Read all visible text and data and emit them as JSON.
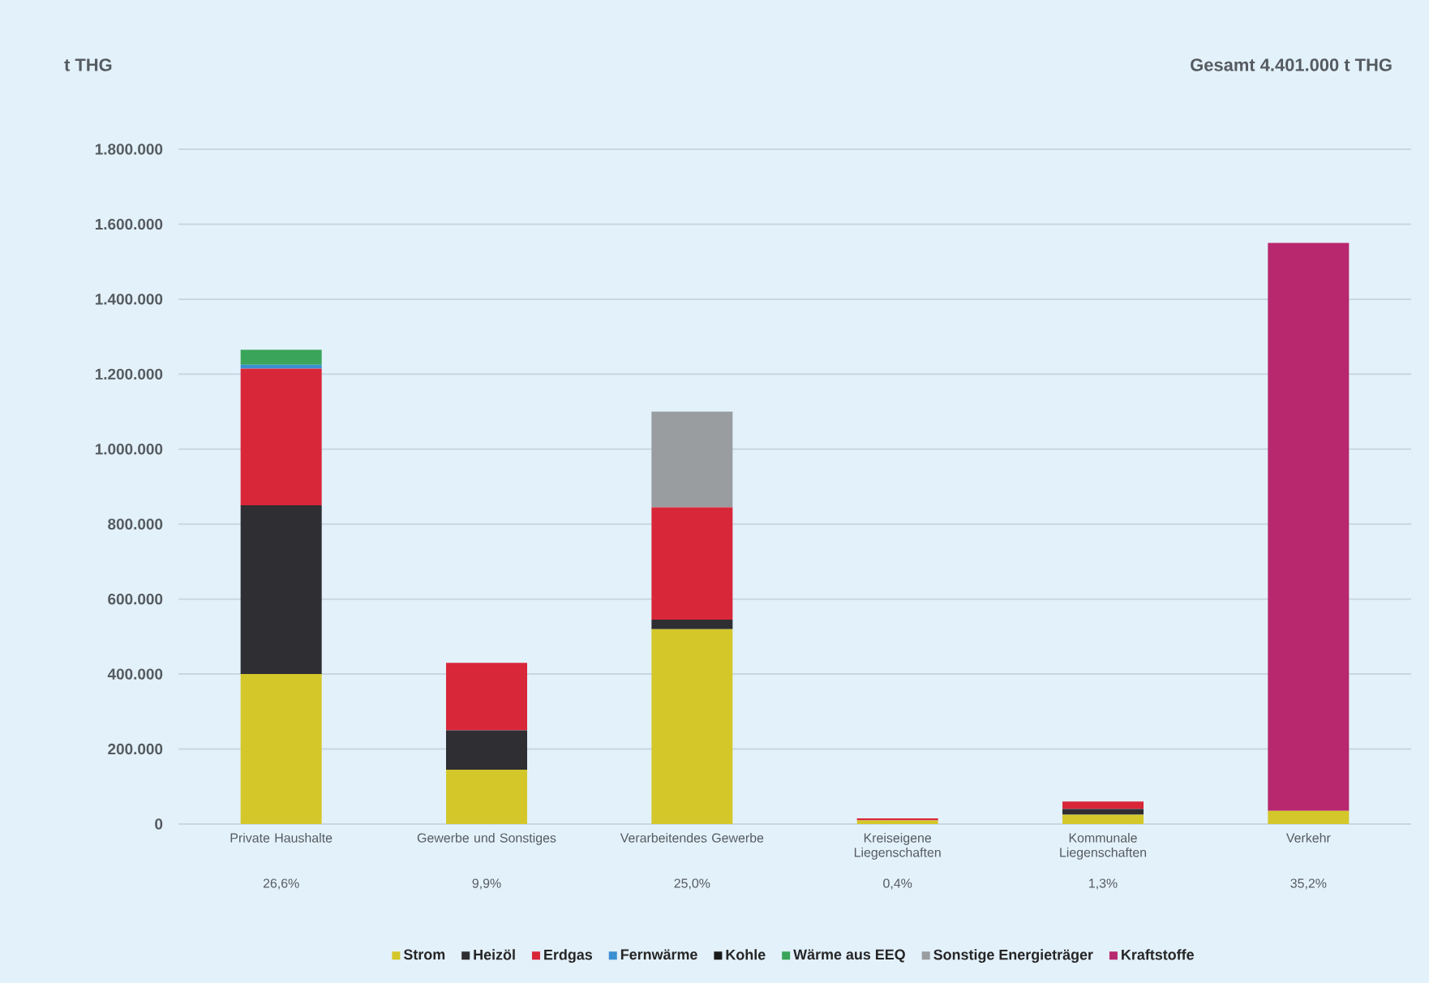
{
  "chart_data": {
    "type": "bar",
    "stacked": true,
    "ylabel": "t THG",
    "categories": [
      "Private Haushalte",
      "Gewerbe und Sonstiges",
      "Verarbeitendes Gewerbe",
      "Kreiseigene Liegenschaften",
      "Kommunale Liegenschaften",
      "Verkehr"
    ],
    "series": [
      {
        "name": "Strom",
        "color": "#d4c72a",
        "values": [
          400000,
          145000,
          520000,
          10000,
          25000,
          35000
        ]
      },
      {
        "name": "Heizöl",
        "color": "#2e2e33",
        "values": [
          450000,
          105000,
          25000,
          0,
          15000,
          0
        ]
      },
      {
        "name": "Erdgas",
        "color": "#d9273a",
        "values": [
          365000,
          180000,
          300000,
          5000,
          20000,
          0
        ]
      },
      {
        "name": "Fernwärme",
        "color": "#3a8fd1",
        "values": [
          10000,
          0,
          0,
          0,
          0,
          0
        ]
      },
      {
        "name": "Kohle",
        "color": "#1a1a1a",
        "values": [
          0,
          0,
          0,
          0,
          0,
          0
        ]
      },
      {
        "name": "Wärme aus EEQ",
        "color": "#3aa55a",
        "values": [
          40000,
          0,
          0,
          0,
          0,
          0
        ]
      },
      {
        "name": "Sonstige Energieträger",
        "color": "#999da0",
        "values": [
          0,
          0,
          255000,
          0,
          0,
          0
        ]
      },
      {
        "name": "Kraftstoffe",
        "color": "#b8286e",
        "values": [
          0,
          0,
          0,
          0,
          0,
          1515000
        ]
      }
    ],
    "ylim": [
      0,
      1800000
    ],
    "yticks": [
      0,
      {
        "value": 200000,
        "label": "200.000"
      },
      {
        "value": 400000,
        "label": "400.000"
      },
      {
        "value": 600000,
        "label": "600.000"
      },
      {
        "value": 800000,
        "label": "800.000"
      },
      {
        "value": 1000000,
        "label": "1.000.000"
      },
      {
        "value": 1200000,
        "label": "1.200.000"
      },
      {
        "value": 1400000,
        "label": "1.400.000"
      },
      {
        "value": 1600000,
        "label": "1.600.000"
      },
      {
        "value": 1800000,
        "label": "1.800.000"
      }
    ],
    "grid": "y",
    "legend": "bottom",
    "annotations": [
      "26,6%",
      "9,9%",
      "25,0%",
      "0,4%",
      "1,3%",
      "35,2%",
      "Gesamt   4.401.000 t THG"
    ]
  }
}
